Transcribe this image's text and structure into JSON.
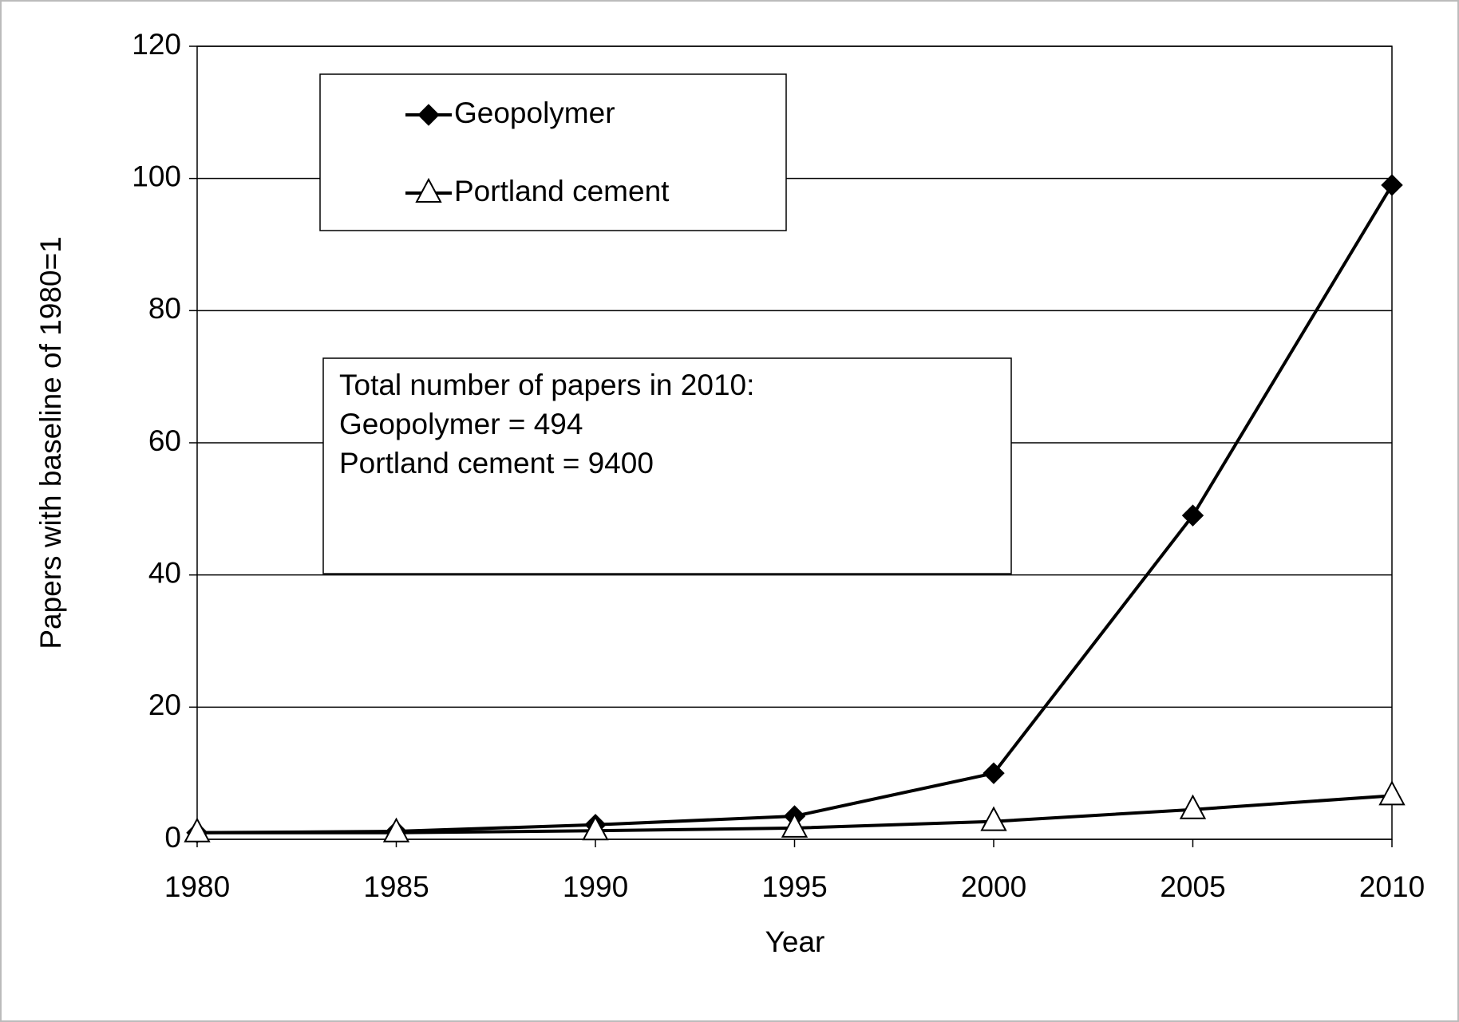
{
  "chart_data": {
    "type": "line",
    "x_label": "Year",
    "y_label": "Papers with baseline of 1980=1",
    "x": [
      1980,
      1985,
      1990,
      1995,
      2000,
      2005,
      2010
    ],
    "series": [
      {
        "name": "Geopolymer",
        "color": "#000000",
        "marker": "diamond",
        "values": [
          1,
          1.2,
          2.2,
          3.5,
          10,
          49,
          99
        ]
      },
      {
        "name": "Portland cement",
        "color": "#000000",
        "marker": "triangle",
        "values": [
          1,
          1,
          1.3,
          1.7,
          2.7,
          4.5,
          6.6
        ]
      }
    ],
    "xlim": [
      1980,
      2010
    ],
    "xticks": [
      1980,
      1985,
      1990,
      1995,
      2000,
      2005,
      2010
    ],
    "ylim": [
      0,
      120
    ],
    "yticks": [
      0,
      20,
      40,
      60,
      80,
      100,
      120
    ],
    "grid": true,
    "legend_position": "upper left",
    "annotation": [
      "Total number of papers in 2010:",
      "Geopolymer = 494",
      "Portland cement = 9400"
    ]
  }
}
